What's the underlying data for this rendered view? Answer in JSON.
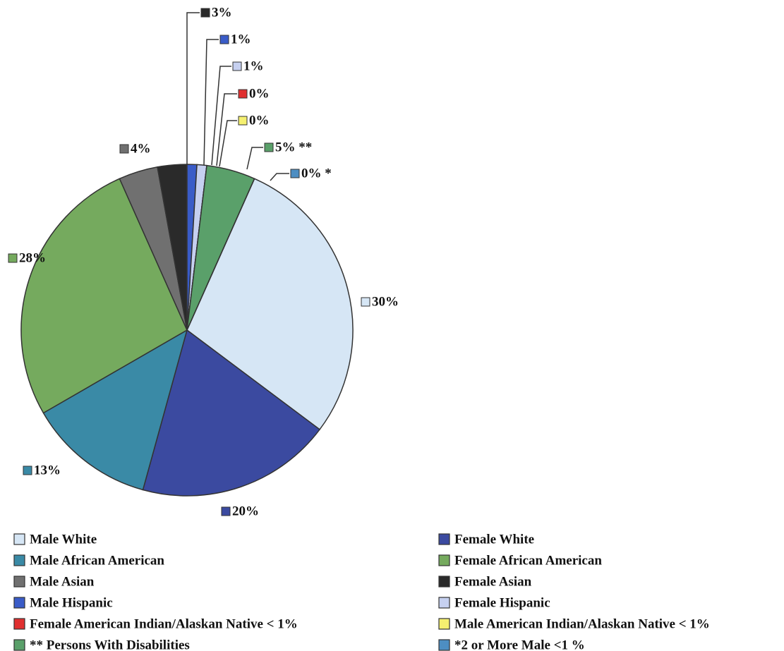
{
  "chart_data": {
    "type": "pie",
    "categories": [
      "Male White",
      "Female White",
      "Male African American",
      "Female African American",
      "Male Asian",
      "Female Asian",
      "Male Hispanic",
      "Female Hispanic",
      "Female American Indian/Alaskan Native < 1%",
      "Male American Indian/Alaskan Native < 1%",
      "** Persons With Disabilities",
      "*2 or More Male <1 %"
    ],
    "values": [
      30,
      20,
      13,
      28,
      4,
      3,
      1,
      1,
      0,
      0,
      5,
      0
    ],
    "value_labels": [
      "30%",
      "20%",
      "13%",
      "28%",
      "4%",
      "3%",
      "1%",
      "1%",
      "0%",
      "0%",
      "5% **",
      "0% *"
    ],
    "colors": [
      "#d6e6f5",
      "#3b4aa0",
      "#3a8aa6",
      "#75aa5e",
      "#707070",
      "#2a2a2a",
      "#3a5cc8",
      "#c6d0f0",
      "#e03030",
      "#f5f070",
      "#5aa06a",
      "#4d8ec2"
    ],
    "legend": true
  }
}
